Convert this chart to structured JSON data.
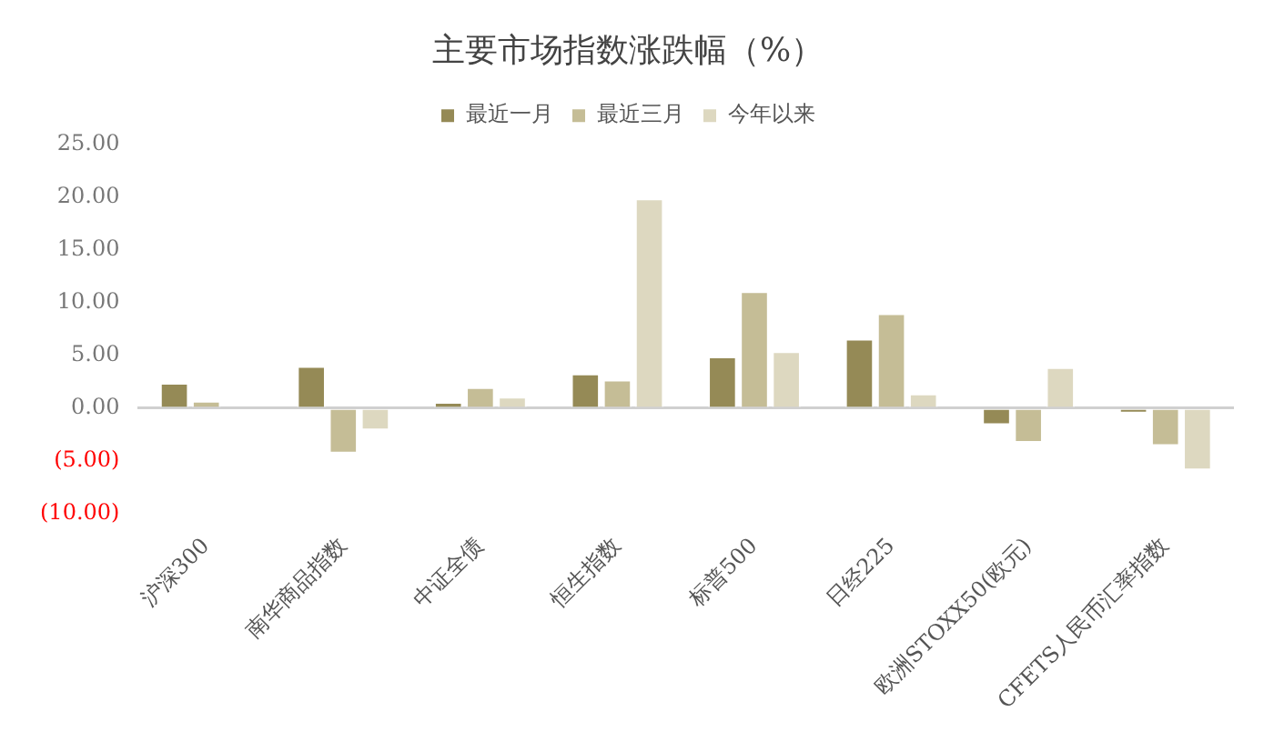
{
  "chart_data": {
    "type": "bar",
    "title": "主要市场指数涨跌幅（%）",
    "categories": [
      "沪深300",
      "南华商品指数",
      "中证全债",
      "恒生指数",
      "标普500",
      "日经225",
      "欧洲STOXX50(欧元)",
      "CFETS人民币汇率指数"
    ],
    "series": [
      {
        "name": "最近一月",
        "color": "#958a56",
        "values": [
          2.4,
          4.0,
          0.6,
          3.3,
          4.9,
          6.6,
          -1.6,
          -0.5
        ]
      },
      {
        "name": "最近三月",
        "color": "#c5bd96",
        "values": [
          0.7,
          -4.3,
          2.0,
          2.7,
          11.1,
          9.0,
          -3.3,
          -3.6
        ]
      },
      {
        "name": "今年以来",
        "color": "#ddd8c0",
        "values": [
          0,
          -2.1,
          1.1,
          19.9,
          5.4,
          1.4,
          3.9,
          -5.9
        ]
      }
    ],
    "ylim": [
      -10,
      25
    ],
    "yticks": [
      {
        "value": -10,
        "label": "(10.00)"
      },
      {
        "value": -5,
        "label": "(5.00)"
      },
      {
        "value": 0,
        "label": "0.00"
      },
      {
        "value": 5,
        "label": "5.00"
      },
      {
        "value": 10,
        "label": "10.00"
      },
      {
        "value": 15,
        "label": "15.00"
      },
      {
        "value": 20,
        "label": "20.00"
      },
      {
        "value": 25,
        "label": "25.00"
      }
    ],
    "legend": "top"
  }
}
